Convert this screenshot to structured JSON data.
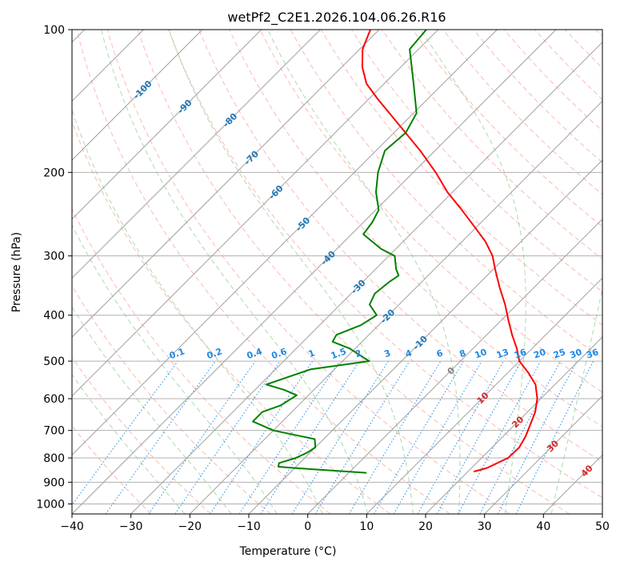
{
  "chart_data": {
    "type": "line",
    "title": "wetPf2_C2E1.2026.104.06.26.R16",
    "xlabel": "Temperature (°C)",
    "ylabel": "Pressure (hPa)",
    "xlim": [
      -40,
      50
    ],
    "ylim": [
      1050,
      100
    ],
    "y_scale": "log",
    "x_ticks": [
      -40,
      -30,
      -20,
      -10,
      0,
      10,
      20,
      30,
      40,
      50
    ],
    "y_ticks": [
      100,
      200,
      300,
      400,
      500,
      600,
      700,
      800,
      900,
      1000
    ],
    "grid": true,
    "skew": 45,
    "colors": {
      "temperature": "#ff0000",
      "dewpoint": "#008000",
      "dry_adiabats": "#fa8072",
      "moist_adiabats": "#66bb6a",
      "mixing_ratio": "#1e88e5",
      "isotherms": "#808080",
      "isotherm_labels": "#1f77b4",
      "warm_labels": "#d62728"
    },
    "series": [
      {
        "key": "temperature",
        "p": [
          855,
          840,
          800,
          760,
          720,
          680,
          640,
          600,
          560,
          530,
          500,
          470,
          440,
          410,
          380,
          350,
          320,
          300,
          280,
          260,
          240,
          220,
          200,
          180,
          160,
          140,
          130,
          120,
          110,
          100
        ],
        "t": [
          21,
          22.6,
          24.5,
          24.6,
          23.8,
          22.6,
          21.3,
          19.4,
          16.7,
          13.6,
          10.0,
          7.4,
          4.3,
          1.2,
          -2.0,
          -5.8,
          -9.7,
          -12.4,
          -16.0,
          -20.5,
          -25.4,
          -30.9,
          -36.2,
          -42.5,
          -50.0,
          -58.5,
          -63.0,
          -66.5,
          -69.5,
          -71.5
        ]
      },
      {
        "key": "dewpoint",
        "p": [
          860,
          840,
          835,
          820,
          800,
          780,
          760,
          730,
          700,
          670,
          640,
          620,
          590,
          575,
          560,
          520,
          500,
          470,
          455,
          440,
          420,
          400,
          380,
          360,
          340,
          330,
          320,
          300,
          290,
          270,
          255,
          240,
          220,
          200,
          180,
          165,
          150,
          130,
          110,
          100
        ],
        "t": [
          3.0,
          -10.0,
          -13.0,
          -13.5,
          -11.5,
          -10.5,
          -10.0,
          -11.5,
          -20.0,
          -25.0,
          -25.0,
          -23.0,
          -22.0,
          -25.0,
          -29.0,
          -24.0,
          -15.5,
          -21.0,
          -25.0,
          -25.5,
          -23.0,
          -22.0,
          -25.0,
          -26.0,
          -25.5,
          -25.0,
          -26.5,
          -29.0,
          -32.5,
          -38.0,
          -38.5,
          -39.5,
          -43.0,
          -46.0,
          -48.5,
          -48.0,
          -49.5,
          -55.0,
          -61.5,
          -62.0
        ]
      }
    ],
    "isotherm_labels": [
      -100,
      -90,
      -80,
      -70,
      -60,
      -50,
      -40,
      -30,
      -20,
      -10,
      0,
      10,
      20,
      30,
      40
    ],
    "mixing_ratio_labels": [
      "0.1",
      "0.2",
      "0.4",
      "0.6",
      "1",
      "1.5",
      "2",
      "3",
      "4",
      "6",
      "8",
      "10",
      "13",
      "16",
      "20",
      "25",
      "30",
      "36"
    ],
    "mixing_ratio_values": [
      0.1,
      0.2,
      0.4,
      0.6,
      1,
      1.5,
      2,
      3,
      4,
      6,
      8,
      10,
      13,
      16,
      20,
      25,
      30,
      36
    ],
    "mixing_ratio_label_pressure": 500,
    "dry_adiabat_thetas_c": [
      -30,
      -20,
      -10,
      0,
      10,
      20,
      30,
      40,
      50,
      60,
      70,
      80,
      90,
      100,
      110,
      120,
      130,
      140,
      150,
      160,
      170,
      180,
      190,
      200,
      210,
      220,
      230
    ],
    "moist_adiabat_start_c": [
      -24,
      -16,
      -8,
      0,
      8,
      16,
      24,
      32,
      40
    ]
  }
}
